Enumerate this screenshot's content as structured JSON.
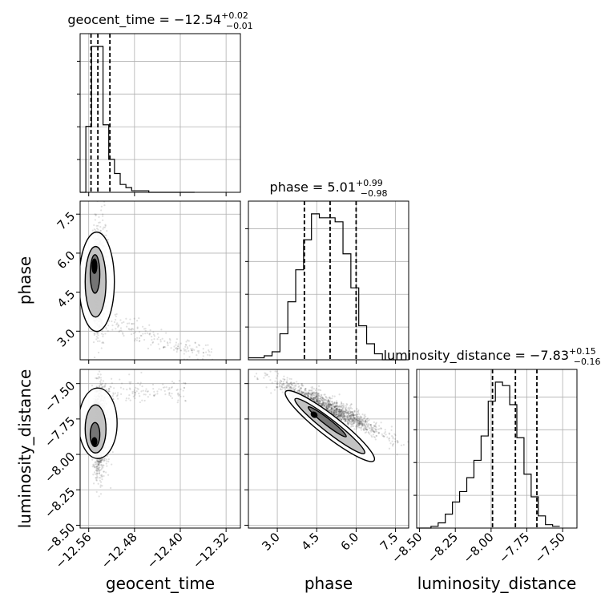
{
  "chart_data": {
    "type": "corner",
    "parameters": [
      "geocent_time",
      "phase",
      "luminosity_distance"
    ],
    "titles": [
      {
        "param": "geocent_time",
        "prefix": "geocent_time = ",
        "median": "−12.54",
        "plus": "+0.02",
        "minus": "−0.01"
      },
      {
        "param": "phase",
        "prefix": "phase = ",
        "median": "5.01",
        "plus": "+0.99",
        "minus": "−0.98"
      },
      {
        "param": "luminosity_distance",
        "prefix": "luminosity_distance = ",
        "median": "−7.83",
        "plus": "+0.15",
        "minus": "−0.16"
      }
    ],
    "axes": {
      "geocent_time": {
        "range": [
          -12.575,
          -12.295
        ],
        "ticks": [
          -12.56,
          -12.48,
          -12.4,
          -12.32
        ],
        "tick_labels": [
          "−12.56",
          "−12.48",
          "−12.40",
          "−12.32"
        ]
      },
      "phase": {
        "range": [
          1.9,
          8.0
        ],
        "ticks": [
          3.0,
          4.5,
          6.0,
          7.5
        ],
        "tick_labels": [
          "3.0",
          "4.5",
          "6.0",
          "7.5"
        ]
      },
      "luminosity_distance": {
        "range": [
          -8.52,
          -7.4
        ],
        "ticks": [
          -8.5,
          -8.25,
          -8.0,
          -7.75,
          -7.5
        ],
        "tick_labels": [
          "−8.50",
          "−8.25",
          "−8.00",
          "−7.75",
          "−7.50"
        ]
      }
    },
    "quantiles": {
      "geocent_time": [
        -12.556,
        -12.544,
        -12.523
      ],
      "phase": [
        4.03,
        5.01,
        6.0
      ],
      "luminosity_distance": [
        -7.99,
        -7.83,
        -7.68
      ]
    },
    "histograms": {
      "geocent_time": {
        "edges_start": -12.575,
        "bin_width": 0.01,
        "counts": [
          0,
          42,
          93,
          93,
          43,
          21,
          12,
          5,
          3,
          1,
          1,
          1,
          0,
          0,
          0,
          0,
          0,
          0,
          0,
          0
        ]
      },
      "phase": {
        "edges_start": 1.9,
        "bin_width": 0.3,
        "counts": [
          1,
          1,
          2,
          4,
          13,
          29,
          45,
          60,
          73,
          71,
          71,
          69,
          53,
          36,
          17,
          8,
          3,
          0,
          0,
          0
        ]
      },
      "luminosity_distance": {
        "edges_start": -8.52,
        "bin_width": 0.05,
        "counts": [
          0,
          0,
          1,
          3,
          8,
          15,
          21,
          29,
          39,
          53,
          73,
          84,
          82,
          71,
          52,
          31,
          18,
          7,
          2,
          1
        ]
      }
    },
    "grid": true
  }
}
